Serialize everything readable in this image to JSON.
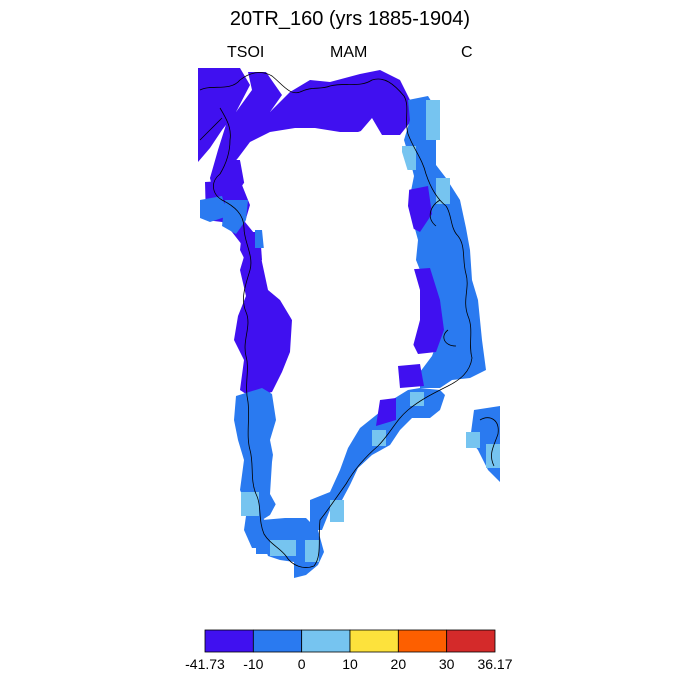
{
  "title": "20TR_160 (yrs 1885-1904)",
  "left_label": "TSOI",
  "center_label": "MAM",
  "right_label": "C",
  "colorbar": {
    "colors": [
      "#4010f0",
      "#2a7af0",
      "#76c4f0",
      "#fde23c",
      "#fd5f00",
      "#d42a2a"
    ],
    "labels": [
      "-41.73",
      "-10",
      "0",
      "10",
      "20",
      "30",
      "36.17"
    ]
  },
  "map_colors": {
    "deep": "#4010f0",
    "mid": "#2a7af0",
    "light": "#76c4f0",
    "coast": "#000000"
  }
}
